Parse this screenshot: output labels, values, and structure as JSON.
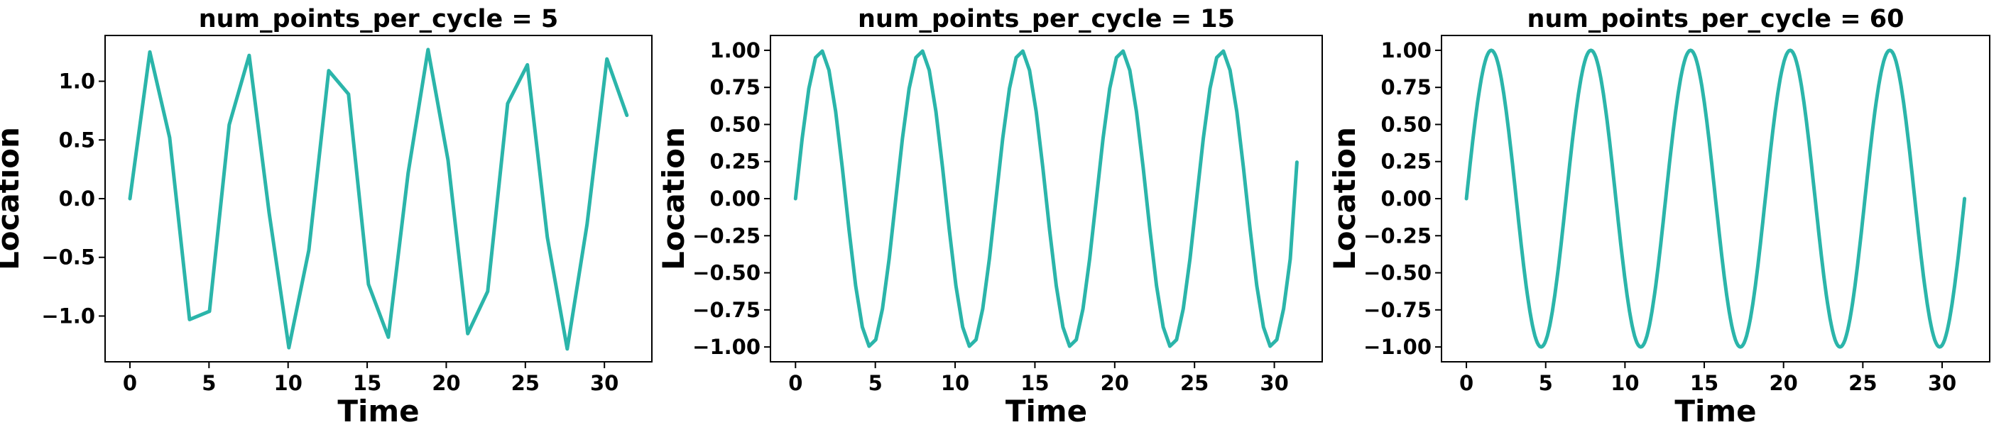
{
  "line_color": "#2bb5aa",
  "chart_data": [
    {
      "type": "line",
      "title": "num_points_per_cycle = 5",
      "xlabel": "Time",
      "ylabel": "Location",
      "xlim": [
        -1.57,
        33.0
      ],
      "ylim": [
        -1.39,
        1.39
      ],
      "xticks": [
        0,
        5,
        10,
        15,
        20,
        25,
        30
      ],
      "xtick_labels": [
        "0",
        "5",
        "10",
        "15",
        "20",
        "25",
        "30"
      ],
      "yticks": [
        -1.0,
        -0.5,
        0.0,
        0.5,
        1.0
      ],
      "ytick_labels": [
        "−1.0",
        "−0.5",
        "0.0",
        "0.5",
        "1.0"
      ],
      "series": [
        {
          "x": [
            0,
            1.26,
            2.51,
            3.77,
            5.03,
            6.28,
            7.54,
            8.8,
            10.05,
            11.31,
            12.57,
            13.82,
            15.08,
            16.34,
            17.59,
            18.85,
            20.11,
            21.36,
            22.62,
            23.88,
            25.13,
            26.39,
            27.65,
            28.9,
            30.16,
            31.42
          ],
          "y": [
            0.0,
            1.25,
            0.52,
            -1.03,
            -0.96,
            0.63,
            1.22,
            -0.12,
            -1.27,
            -0.44,
            1.09,
            0.89,
            -0.73,
            -1.18,
            0.22,
            1.27,
            0.33,
            -1.15,
            -0.79,
            0.81,
            1.14,
            -0.33,
            -1.28,
            -0.22,
            1.19,
            0.71
          ]
        }
      ]
    },
    {
      "type": "line",
      "title": "num_points_per_cycle = 15",
      "xlabel": "Time",
      "ylabel": "Location",
      "xlim": [
        -1.57,
        33.0
      ],
      "ylim": [
        -1.1,
        1.1
      ],
      "xticks": [
        0,
        5,
        10,
        15,
        20,
        25,
        30
      ],
      "xtick_labels": [
        "0",
        "5",
        "10",
        "15",
        "20",
        "25",
        "30"
      ],
      "yticks": [
        -1.0,
        -0.75,
        -0.5,
        -0.25,
        0.0,
        0.25,
        0.5,
        0.75,
        1.0
      ],
      "ytick_labels": [
        "−1.00",
        "−0.75",
        "−0.50",
        "−0.25",
        "0.00",
        "0.25",
        "0.50",
        "0.75",
        "1.00"
      ],
      "series": [
        {
          "x": [
            0,
            0.419,
            0.838,
            1.257,
            1.676,
            2.094,
            2.513,
            2.932,
            3.351,
            3.77,
            4.189,
            4.608,
            5.027,
            5.445,
            5.864,
            6.283,
            6.702,
            7.121,
            7.54,
            7.959,
            8.378,
            8.796,
            9.215,
            9.634,
            10.053,
            10.472,
            10.891,
            11.31,
            11.729,
            12.147,
            12.566,
            12.985,
            13.404,
            13.823,
            14.242,
            14.661,
            15.08,
            15.498,
            15.917,
            16.336,
            16.755,
            17.174,
            17.593,
            18.012,
            18.431,
            18.85,
            19.268,
            19.687,
            20.106,
            20.525,
            20.944,
            21.363,
            21.782,
            22.201,
            22.619,
            23.038,
            23.457,
            23.876,
            24.295,
            24.714,
            25.133,
            25.552,
            25.97,
            26.389,
            26.808,
            27.227,
            27.646,
            28.065,
            28.484,
            28.903,
            29.322,
            29.74,
            30.159,
            30.578,
            30.997,
            31.416
          ],
          "y": [
            0.0,
            0.407,
            0.743,
            0.951,
            0.995,
            0.866,
            0.588,
            0.208,
            -0.208,
            -0.588,
            -0.866,
            -0.995,
            -0.951,
            -0.743,
            -0.407,
            0.0,
            0.407,
            0.743,
            0.951,
            0.995,
            0.866,
            0.588,
            0.208,
            -0.208,
            -0.588,
            -0.866,
            -0.995,
            -0.951,
            -0.743,
            -0.407,
            0.0,
            0.407,
            0.743,
            0.951,
            0.995,
            0.866,
            0.588,
            0.208,
            -0.208,
            -0.588,
            -0.866,
            -0.995,
            -0.951,
            -0.743,
            -0.407,
            0.0,
            0.407,
            0.743,
            0.951,
            0.995,
            0.866,
            0.588,
            0.208,
            -0.208,
            -0.588,
            -0.866,
            -0.995,
            -0.951,
            -0.743,
            -0.407,
            0.0,
            0.407,
            0.743,
            0.951,
            0.995,
            0.866,
            0.588,
            0.208,
            -0.208,
            -0.588,
            -0.866,
            -0.995,
            -0.951,
            -0.743,
            -0.407,
            0.246
          ]
        }
      ]
    },
    {
      "type": "line",
      "title": "num_points_per_cycle = 60",
      "xlabel": "Time",
      "ylabel": "Location",
      "xlim": [
        -1.57,
        33.0
      ],
      "ylim": [
        -1.1,
        1.1
      ],
      "xticks": [
        0,
        5,
        10,
        15,
        20,
        25,
        30
      ],
      "xtick_labels": [
        "0",
        "5",
        "10",
        "15",
        "20",
        "25",
        "30"
      ],
      "yticks": [
        -1.0,
        -0.75,
        -0.5,
        -0.25,
        0.0,
        0.25,
        0.5,
        0.75,
        1.0
      ],
      "ytick_labels": [
        "−1.00",
        "−0.75",
        "−0.50",
        "−0.25",
        "0.00",
        "0.25",
        "0.50",
        "0.75",
        "1.00"
      ],
      "series": [
        {
          "x": [
            0,
            0.785,
            1.571,
            2.356,
            3.142,
            3.927,
            4.712,
            5.498,
            6.283,
            7.069,
            7.854,
            8.639,
            9.425,
            10.21,
            10.996,
            11.781,
            12.566,
            13.352,
            14.137,
            14.923,
            15.708,
            16.493,
            17.279,
            18.064,
            18.85,
            19.635,
            20.42,
            21.206,
            21.991,
            22.777,
            23.562,
            24.347,
            25.133,
            25.918,
            26.704,
            27.489,
            28.274,
            29.06,
            29.845,
            30.631,
            31.416
          ],
          "y": [
            0.0,
            0.707,
            1.0,
            0.707,
            0.0,
            -0.707,
            -1.0,
            -0.707,
            0.0,
            0.707,
            1.0,
            0.707,
            0.0,
            -0.707,
            -1.0,
            -0.707,
            0.0,
            0.707,
            1.0,
            0.707,
            0.0,
            -0.707,
            -1.0,
            -0.707,
            0.0,
            0.707,
            1.0,
            0.707,
            0.0,
            -0.707,
            -1.0,
            -0.707,
            0.0,
            0.707,
            1.0,
            0.707,
            0.0,
            -0.707,
            -1.0,
            -0.707,
            0.0
          ],
          "smooth": true
        }
      ]
    }
  ]
}
